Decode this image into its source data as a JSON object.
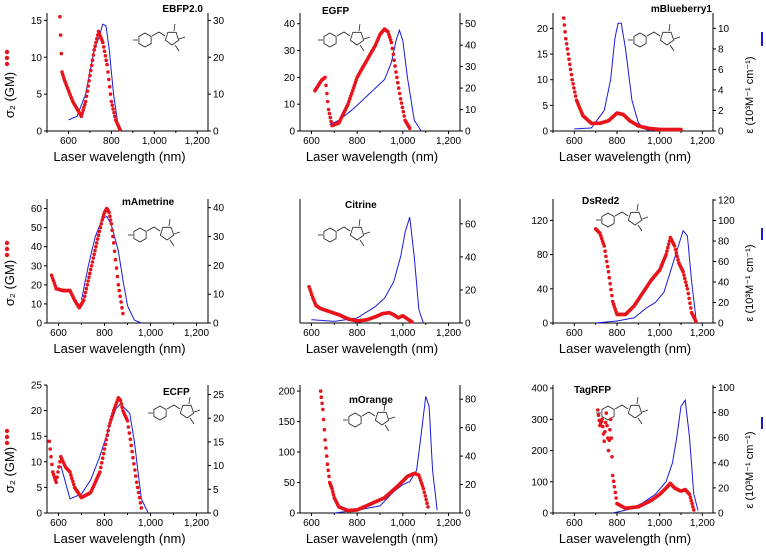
{
  "figure": {
    "left_axis_label": "σ₂ (GM)",
    "right_axis_label": "ε (10³M⁻¹ cm⁻¹)",
    "colors": {
      "tpa": "#e8141b",
      "abs": "#1a1adc"
    }
  },
  "chart_data": [
    {
      "type": "scatter+line",
      "title": "EBFP2.0",
      "xlabel": "Laser wavelength (nm)",
      "xlim": [
        500,
        1250
      ],
      "xticks": [
        600,
        800,
        1000,
        1200
      ],
      "xtick_labels": [
        "600",
        "800",
        "1,000",
        "1,200"
      ],
      "ylim_left": [
        0,
        16
      ],
      "yticks_left": [
        0,
        5,
        10,
        15
      ],
      "ylim_right": [
        0,
        32
      ],
      "yticks_right": [
        0,
        10,
        20,
        30
      ],
      "tpa": {
        "x": [
          560,
          570,
          580,
          600,
          620,
          640,
          660,
          680,
          700,
          720,
          740,
          760,
          780,
          800,
          820,
          840
        ],
        "y": [
          15.5,
          8.0,
          7.0,
          5.5,
          4.0,
          3.0,
          2.0,
          4.0,
          7.5,
          11.0,
          13.5,
          12.0,
          9.0,
          4.0,
          1.5,
          0.2
        ]
      },
      "abs": {
        "x": [
          600,
          640,
          680,
          700,
          720,
          740,
          760,
          775,
          790,
          810,
          830,
          850
        ],
        "y": [
          3,
          4,
          10,
          16,
          22,
          25,
          29,
          28.5,
          22,
          10,
          2,
          0
        ]
      }
    },
    {
      "type": "scatter+line",
      "title": "EGFP",
      "xlabel": "Laser wavelength (nm)",
      "xlim": [
        550,
        1250
      ],
      "xticks": [
        600,
        800,
        1000,
        1200
      ],
      "xtick_labels": [
        "600",
        "800",
        "1,000",
        "1,200"
      ],
      "ylim_left": [
        0,
        44
      ],
      "yticks_left": [
        0,
        10,
        20,
        30,
        40
      ],
      "ylim_right": [
        0,
        55
      ],
      "yticks_right": [
        0,
        10,
        20,
        30,
        40,
        50
      ],
      "tpa": {
        "x": [
          615,
          630,
          645,
          660,
          675,
          690,
          720,
          760,
          800,
          840,
          880,
          900,
          920,
          935,
          950,
          970,
          990,
          1010,
          1030
        ],
        "y": [
          15,
          17,
          19,
          20,
          8,
          2,
          3,
          10,
          20,
          26,
          32,
          36,
          38,
          37,
          33,
          22,
          12,
          4,
          1
        ]
      },
      "abs": {
        "x": [
          680,
          720,
          780,
          840,
          880,
          920,
          950,
          970,
          985,
          1000,
          1020,
          1050,
          1080
        ],
        "y": [
          3,
          5,
          10,
          16,
          20,
          24,
          32,
          42,
          47,
          42,
          25,
          5,
          0
        ]
      }
    },
    {
      "type": "scatter+line",
      "title": "mBlueberry1",
      "xlabel": "Laser wavelength (nm)",
      "xlim": [
        500,
        1250
      ],
      "xticks": [
        600,
        800,
        1000,
        1200
      ],
      "xtick_labels": [
        "600",
        "800",
        "1,000",
        "1,200"
      ],
      "ylim_left": [
        0,
        23
      ],
      "yticks_left": [
        0,
        5,
        10,
        15,
        20
      ],
      "ylim_right": [
        0,
        11.5
      ],
      "yticks_right": [
        0,
        2,
        4,
        6,
        8,
        10
      ],
      "tpa": {
        "x": [
          550,
          560,
          575,
          590,
          610,
          640,
          680,
          720,
          760,
          800,
          830,
          860,
          900,
          950,
          1000,
          1050,
          1100
        ],
        "y": [
          22,
          18,
          14,
          10,
          6,
          3,
          1.5,
          1.5,
          2,
          3.5,
          3.2,
          2.0,
          1.0,
          0.5,
          0.3,
          0.3,
          0.3
        ]
      },
      "abs": {
        "x": [
          600,
          680,
          740,
          770,
          790,
          805,
          820,
          840,
          870,
          900,
          930,
          960
        ],
        "y": [
          0.2,
          0.3,
          2,
          5,
          9,
          10.5,
          10.5,
          8,
          3,
          0.8,
          0.2,
          0
        ]
      }
    },
    {
      "type": "scatter+line",
      "title": "mAmetrine",
      "xlabel": "Laser wavelength (nm)",
      "xlim": [
        550,
        1250
      ],
      "xticks": [
        600,
        800,
        1000,
        1200
      ],
      "xtick_labels": [
        "600",
        "800",
        "1,000",
        "1,200"
      ],
      "ylim_left": [
        0,
        65
      ],
      "yticks_left": [
        0,
        10,
        20,
        30,
        40,
        50,
        60
      ],
      "ylim_right": [
        0,
        43
      ],
      "yticks_right": [
        0,
        10,
        20,
        30,
        40
      ],
      "tpa": {
        "x": [
          570,
          590,
          620,
          650,
          670,
          690,
          710,
          740,
          770,
          790,
          800,
          810,
          820,
          830,
          840,
          860,
          880
        ],
        "y": [
          25,
          18,
          17,
          17,
          12,
          8,
          12,
          28,
          44,
          54,
          58,
          60,
          58,
          52,
          42,
          20,
          5
        ]
      },
      "abs": {
        "x": [
          700,
          730,
          760,
          790,
          810,
          830,
          860,
          880,
          900,
          930,
          960
        ],
        "y": [
          8,
          20,
          30,
          36,
          37,
          34,
          25,
          15,
          6,
          1,
          0
        ]
      }
    },
    {
      "type": "scatter+line",
      "title": "Citrine",
      "xlabel": "Laser wavelength (nm)",
      "xlim": [
        550,
        1250
      ],
      "xticks": [
        600,
        800,
        1000,
        1200
      ],
      "xtick_labels": [
        "600",
        "800",
        "1,000",
        "1,200"
      ],
      "ylim_left": [
        0,
        120
      ],
      "yticks_left": [],
      "ylim_right": [
        0,
        75
      ],
      "yticks_right": [
        0,
        20,
        40,
        60
      ],
      "tpa": {
        "x": [
          590,
          605,
          620,
          640,
          680,
          720,
          760,
          800,
          840,
          880,
          910,
          940,
          960,
          980,
          1000,
          1020,
          1040
        ],
        "y": [
          35,
          25,
          17,
          14,
          11,
          8,
          4,
          2,
          3,
          6,
          9,
          10,
          8,
          5,
          7,
          4,
          1
        ]
      },
      "abs": {
        "x": [
          600,
          700,
          800,
          880,
          920,
          960,
          990,
          1010,
          1030,
          1050,
          1070,
          1090
        ],
        "y": [
          2,
          1,
          3,
          10,
          15,
          25,
          40,
          55,
          64,
          40,
          8,
          0
        ]
      }
    },
    {
      "type": "scatter+line",
      "title": "DsRed2",
      "xlabel": "Laser wavelength (nm)",
      "xlim": [
        500,
        1250
      ],
      "xticks": [
        600,
        800,
        1000,
        1200
      ],
      "xtick_labels": [
        "600",
        "800",
        "1,000",
        "1,200"
      ],
      "ylim_left": [
        0,
        145
      ],
      "yticks_left": [
        0,
        40,
        80,
        120
      ],
      "ylim_right": [
        0,
        121
      ],
      "yticks_right": [
        0,
        20,
        40,
        60,
        80,
        100,
        120
      ],
      "tpa": {
        "x": [
          700,
          720,
          740,
          760,
          780,
          800,
          840,
          880,
          920,
          960,
          1000,
          1030,
          1050,
          1070,
          1090,
          1110,
          1130,
          1150,
          1170
        ],
        "y": [
          110,
          105,
          90,
          60,
          25,
          10,
          10,
          20,
          35,
          50,
          62,
          80,
          100,
          90,
          70,
          60,
          40,
          12,
          2
        ]
      },
      "abs": {
        "x": [
          700,
          800,
          880,
          940,
          980,
          1020,
          1050,
          1080,
          1110,
          1130,
          1150,
          1170
        ],
        "y": [
          0,
          2,
          5,
          15,
          20,
          30,
          50,
          70,
          90,
          85,
          40,
          5
        ]
      }
    },
    {
      "type": "scatter+line",
      "title": "ECFP",
      "xlabel": "Laser wavelength (nm)",
      "xlim": [
        550,
        1250
      ],
      "xticks": [
        600,
        800,
        1000,
        1200
      ],
      "xtick_labels": [
        "600",
        "800",
        "1,000",
        "1,200"
      ],
      "ylim_left": [
        0,
        25
      ],
      "yticks_left": [
        0,
        5,
        10,
        15,
        20,
        25
      ],
      "ylim_right": [
        0,
        27
      ],
      "yticks_right": [
        0,
        5,
        10,
        15,
        20,
        25
      ],
      "tpa": {
        "x": [
          560,
          575,
          590,
          610,
          630,
          650,
          670,
          700,
          740,
          780,
          820,
          840,
          860,
          870,
          880,
          900,
          920,
          940,
          960
        ],
        "y": [
          14,
          8,
          6,
          11,
          9,
          8,
          5,
          3,
          4,
          8,
          17,
          20,
          22.5,
          22,
          20,
          18,
          12,
          6,
          1
        ]
      },
      "abs": {
        "x": [
          610,
          650,
          700,
          740,
          780,
          820,
          850,
          870,
          890,
          910,
          930,
          960,
          990
        ],
        "y": [
          10,
          3,
          4,
          7,
          12,
          18,
          22,
          23,
          22,
          21,
          15,
          3,
          0
        ]
      }
    },
    {
      "type": "scatter+line",
      "title": "mOrange",
      "xlabel": "Laser wavelength (nm)",
      "xlim": [
        550,
        1250
      ],
      "xticks": [
        600,
        800,
        1000,
        1200
      ],
      "xtick_labels": [
        "600",
        "800",
        "1,000",
        "1,200"
      ],
      "ylim_left": [
        0,
        210
      ],
      "yticks_left": [
        0,
        50,
        100,
        150,
        200
      ],
      "ylim_right": [
        0,
        90
      ],
      "yticks_right": [
        0,
        20,
        40,
        60,
        80
      ],
      "tpa": {
        "x": [
          640,
          650,
          660,
          670,
          680,
          690,
          700,
          720,
          760,
          800,
          860,
          920,
          980,
          1020,
          1050,
          1070,
          1090,
          1110
        ],
        "y": [
          200,
          170,
          120,
          80,
          50,
          40,
          25,
          10,
          4,
          5,
          15,
          25,
          45,
          60,
          65,
          62,
          40,
          10
        ]
      },
      "abs": {
        "x": [
          700,
          800,
          900,
          960,
          1000,
          1030,
          1060,
          1080,
          1100,
          1115,
          1130,
          1150
        ],
        "y": [
          0,
          2,
          5,
          15,
          20,
          22,
          30,
          55,
          82,
          75,
          30,
          2
        ]
      }
    },
    {
      "type": "scatter+line",
      "title": "TagRFP",
      "xlabel": "Laser wavelength (nm)",
      "xlim": [
        500,
        1250
      ],
      "xticks": [
        600,
        800,
        1000,
        1200
      ],
      "xtick_labels": [
        "600",
        "800",
        "1,000",
        "1,200"
      ],
      "ylim_left": [
        0,
        410
      ],
      "yticks_left": [
        0,
        100,
        200,
        300,
        400
      ],
      "ylim_right": [
        0,
        102
      ],
      "yticks_right": [
        0,
        20,
        40,
        60,
        80,
        100
      ],
      "tpa": {
        "x": [
          710,
          720,
          730,
          740,
          750,
          760,
          770,
          780,
          800,
          840,
          900,
          960,
          1000,
          1030,
          1050,
          1070,
          1100,
          1120,
          1140,
          1160
        ],
        "y": [
          330,
          280,
          300,
          230,
          320,
          200,
          300,
          120,
          30,
          15,
          20,
          40,
          60,
          80,
          95,
          80,
          70,
          75,
          60,
          10
        ]
      },
      "abs": {
        "x": [
          780,
          860,
          920,
          980,
          1030,
          1060,
          1080,
          1100,
          1120,
          1140,
          1160,
          1180
        ],
        "y": [
          0,
          3,
          8,
          15,
          25,
          40,
          60,
          85,
          90,
          60,
          15,
          2
        ]
      }
    }
  ]
}
